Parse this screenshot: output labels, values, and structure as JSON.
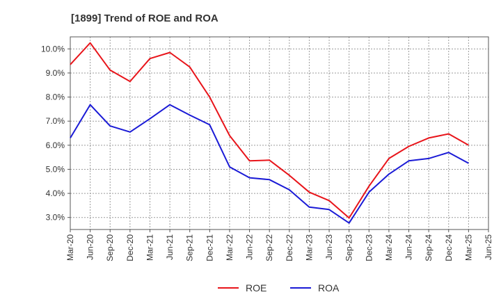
{
  "chart_data": {
    "type": "line",
    "title": "[1899]  Trend of ROE and ROA",
    "xlabel": "",
    "ylabel": "",
    "x": [
      "Mar-20",
      "Jun-20",
      "Sep-20",
      "Dec-20",
      "Mar-21",
      "Jun-21",
      "Sep-21",
      "Dec-21",
      "Mar-22",
      "Jun-22",
      "Sep-22",
      "Dec-22",
      "Mar-23",
      "Jun-23",
      "Sep-23",
      "Dec-23",
      "Mar-24",
      "Jun-24",
      "Sep-24",
      "Dec-24",
      "Mar-25",
      "Jun-25"
    ],
    "y_ticks": [
      "3.0%",
      "4.0%",
      "5.0%",
      "6.0%",
      "7.0%",
      "8.0%",
      "9.0%",
      "10.0%"
    ],
    "y_tick_values": [
      3,
      4,
      5,
      6,
      7,
      8,
      9,
      10
    ],
    "ylim": [
      2.5,
      10.5
    ],
    "grid": true,
    "legend_position": "bottom",
    "series": [
      {
        "name": "ROE",
        "color": "#e8141a",
        "values": [
          9.35,
          10.25,
          9.12,
          8.65,
          9.6,
          9.85,
          9.25,
          8.0,
          6.4,
          5.35,
          5.38,
          4.75,
          4.05,
          3.7,
          2.98,
          4.3,
          5.45,
          5.95,
          6.3,
          6.47,
          6.0,
          null
        ]
      },
      {
        "name": "ROA",
        "color": "#1a1ad6",
        "values": [
          6.3,
          7.68,
          6.8,
          6.55,
          7.1,
          7.68,
          7.25,
          6.85,
          5.1,
          4.65,
          4.57,
          4.15,
          3.43,
          3.33,
          2.77,
          4.05,
          4.8,
          5.35,
          5.45,
          5.7,
          5.25,
          null
        ]
      }
    ]
  }
}
